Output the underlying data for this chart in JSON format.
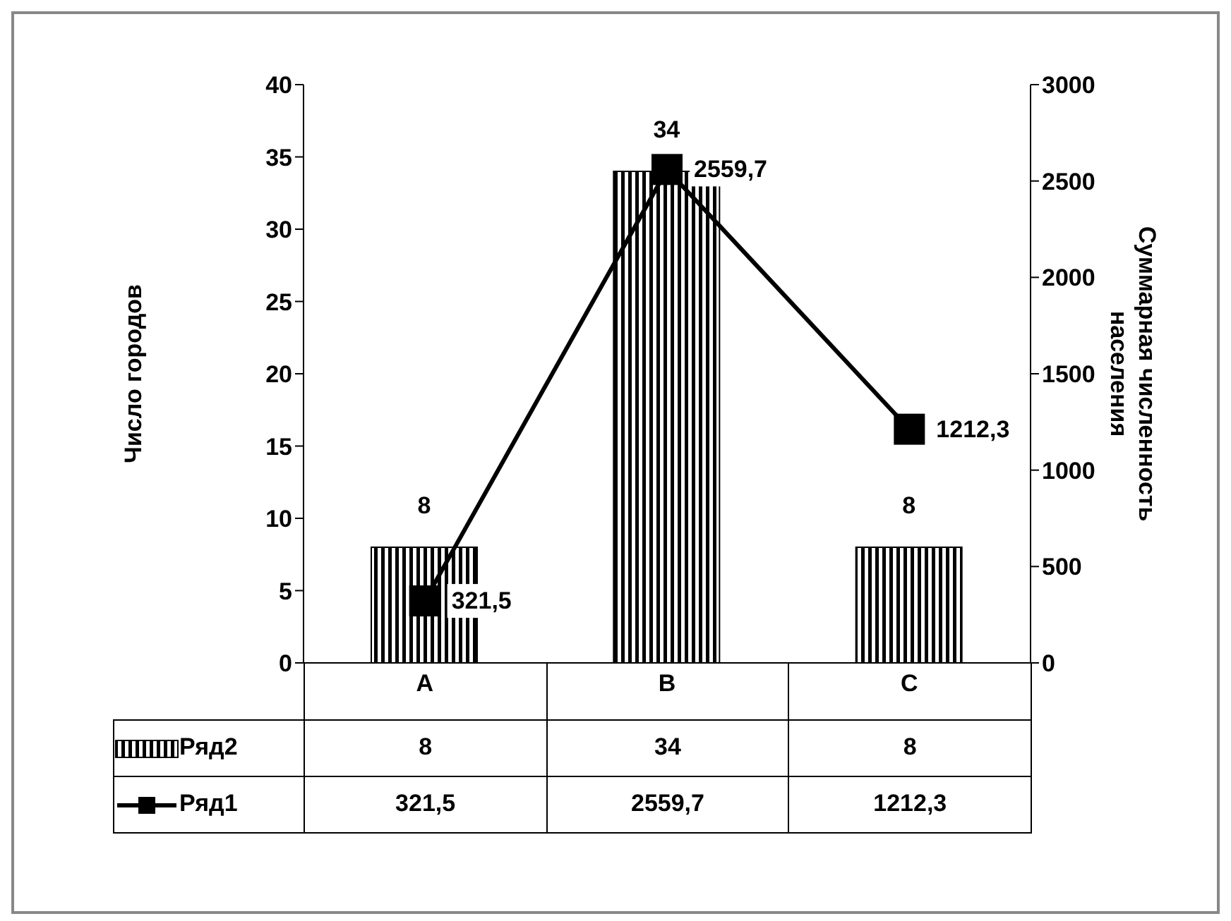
{
  "chart_data": {
    "type": "bar",
    "categories": [
      "A",
      "B",
      "C"
    ],
    "series": [
      {
        "name": "Ряд2",
        "color": "#000000",
        "values": [
          8,
          34,
          8
        ],
        "value_labels": [
          "8",
          "34",
          "8"
        ]
      },
      {
        "name": "Ряд1",
        "type": "line",
        "axis": "y2",
        "color": "#000000",
        "values": [
          321.5,
          2559.7,
          1212.3
        ],
        "value_labels": [
          "321,5",
          "2559,7",
          "1212,3"
        ]
      }
    ],
    "ylabel": "Число городов",
    "y2label": "Суммарная численность населения",
    "ylim": [
      0,
      40
    ],
    "yticks": [
      0,
      5,
      10,
      15,
      20,
      25,
      30,
      35,
      40
    ],
    "y2lim": [
      0,
      3000
    ],
    "y2ticks": [
      0,
      500,
      1000,
      1500,
      2000,
      2500,
      3000
    ],
    "grid": false,
    "legend": "bottom",
    "marker": "square",
    "line_style": "solid"
  }
}
